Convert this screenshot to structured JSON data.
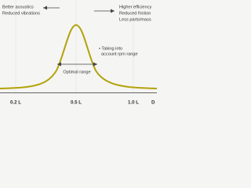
{
  "annotations": {
    "left": [
      "Better acoustics",
      "Reduced vibrations"
    ],
    "right": [
      "Higher efficiency",
      "Reduced friction",
      "Less parts/mass"
    ],
    "note": [
      "• Taking into",
      "account rpm range"
    ],
    "range": "Optimal range"
  },
  "axis": {
    "tick_labels": [
      "0.2 L",
      "0.5 L",
      "1.0 L"
    ],
    "label": "D"
  }
}
